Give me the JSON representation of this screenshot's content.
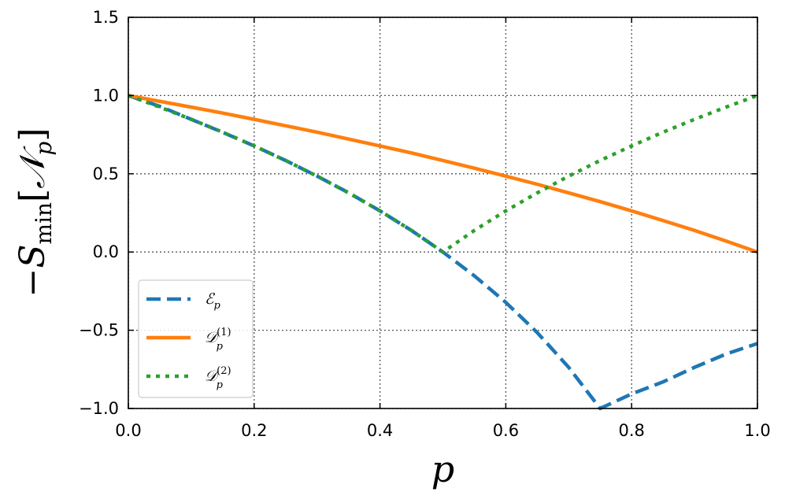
{
  "chart_data": {
    "type": "line",
    "title": "",
    "xlabel": "p",
    "ylabel": {
      "prefix": "−S",
      "subscript": "min",
      "open": "[",
      "symbol": "𝒩",
      "symbol_subscript": "p",
      "close": "]"
    },
    "xlim": [
      0.0,
      1.0
    ],
    "ylim": [
      -1.0,
      1.5
    ],
    "xticks": [
      "0.0",
      "0.2",
      "0.4",
      "0.6",
      "0.8",
      "1.0"
    ],
    "yticks": [
      "−1.0",
      "−0.5",
      "0.0",
      "0.5",
      "1.0",
      "1.5"
    ],
    "xtick_values": [
      0.0,
      0.2,
      0.4,
      0.6,
      0.8,
      1.0
    ],
    "ytick_values": [
      -1.0,
      -0.5,
      0.0,
      0.5,
      1.0,
      1.5
    ],
    "grid": true,
    "legend_position": "lower-left",
    "series": [
      {
        "name": "ℰ",
        "name_sub": "p",
        "name_sup": "",
        "color": "#1f77b4",
        "style": "dashed",
        "x": [
          0.0,
          0.05,
          0.1,
          0.15,
          0.2,
          0.25,
          0.3,
          0.35,
          0.4,
          0.45,
          0.5,
          0.55,
          0.6,
          0.65,
          0.7,
          0.75,
          0.8,
          0.85,
          0.9,
          0.95,
          1.0
        ],
        "y": [
          1.0,
          0.931,
          0.848,
          0.765,
          0.678,
          0.585,
          0.485,
          0.379,
          0.263,
          0.138,
          0.0,
          -0.152,
          -0.322,
          -0.515,
          -0.737,
          -1.0,
          -0.907,
          -0.83,
          -0.737,
          -0.652,
          -0.585
        ]
      },
      {
        "name": "𝒟",
        "name_sub": "p",
        "name_sup": "(1)",
        "color": "#ff7f0e",
        "style": "solid",
        "x": [
          0.0,
          0.05,
          0.1,
          0.15,
          0.2,
          0.25,
          0.3,
          0.35,
          0.4,
          0.45,
          0.5,
          0.55,
          0.6,
          0.65,
          0.7,
          0.75,
          0.8,
          0.85,
          0.9,
          0.95,
          1.0
        ],
        "y": [
          1.0,
          0.963,
          0.926,
          0.888,
          0.848,
          0.807,
          0.766,
          0.722,
          0.678,
          0.633,
          0.585,
          0.536,
          0.485,
          0.433,
          0.378,
          0.322,
          0.263,
          0.201,
          0.138,
          0.07,
          0.0
        ]
      },
      {
        "name": "𝒟",
        "name_sub": "p",
        "name_sup": "(2)",
        "color": "#2ca02c",
        "style": "dotted",
        "x": [
          0.0,
          0.05,
          0.1,
          0.15,
          0.2,
          0.25,
          0.3,
          0.35,
          0.4,
          0.45,
          0.5,
          0.55,
          0.6,
          0.65,
          0.7,
          0.75,
          0.8,
          0.85,
          0.9,
          0.95,
          1.0
        ],
        "y": [
          1.0,
          0.926,
          0.848,
          0.766,
          0.678,
          0.585,
          0.485,
          0.378,
          0.263,
          0.138,
          0.0,
          0.138,
          0.263,
          0.378,
          0.485,
          0.585,
          0.678,
          0.766,
          0.848,
          0.926,
          1.0
        ]
      }
    ]
  }
}
